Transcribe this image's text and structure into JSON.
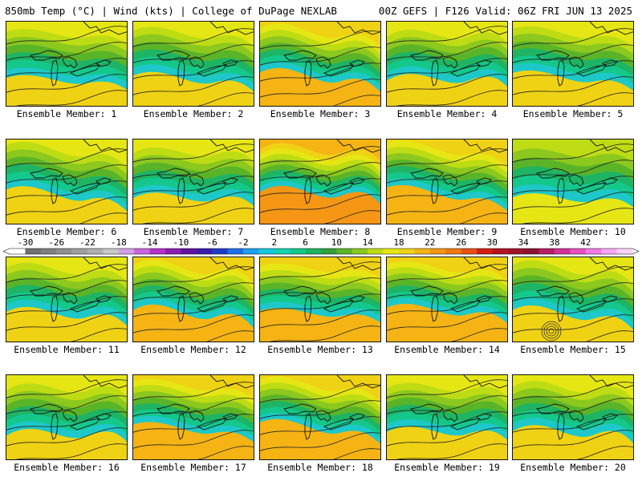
{
  "header": {
    "left": "850mb Temp (°C) | Wind (kts) | College of DuPage NEXLAB",
    "right": "00Z GEFS | F126 Valid: 06Z FRI JUN 13 2025"
  },
  "panel_label_prefix": "Ensemble Member: ",
  "members": [
    {
      "number": "1",
      "warmth": 0.45,
      "max_temp_c": 20
    },
    {
      "number": "2",
      "warmth": 0.5,
      "max_temp_c": 20
    },
    {
      "number": "3",
      "warmth": 0.62,
      "max_temp_c": 21
    },
    {
      "number": "4",
      "warmth": 0.55,
      "max_temp_c": 20
    },
    {
      "number": "5",
      "warmth": 0.55,
      "max_temp_c": 20
    },
    {
      "number": "6",
      "warmth": 0.55,
      "max_temp_c": 21
    },
    {
      "number": "7",
      "warmth": 0.5,
      "max_temp_c": 20
    },
    {
      "number": "8",
      "warmth": 0.78,
      "max_temp_c": 24
    },
    {
      "number": "9",
      "warmth": 0.62,
      "max_temp_c": 21
    },
    {
      "number": "10",
      "warmth": 0.4,
      "max_temp_c": 19
    },
    {
      "number": "11",
      "warmth": 0.55,
      "max_temp_c": 21
    },
    {
      "number": "12",
      "warmth": 0.6,
      "max_temp_c": 20
    },
    {
      "number": "13",
      "warmth": 0.62,
      "max_temp_c": 20
    },
    {
      "number": "14",
      "warmth": 0.72,
      "max_temp_c": 22
    },
    {
      "number": "15",
      "warmth": 0.5,
      "max_temp_c": 21
    },
    {
      "number": "16",
      "warmth": 0.48,
      "max_temp_c": 20
    },
    {
      "number": "17",
      "warmth": 0.68,
      "max_temp_c": 22
    },
    {
      "number": "18",
      "warmth": 0.72,
      "max_temp_c": 22
    },
    {
      "number": "19",
      "warmth": 0.58,
      "max_temp_c": 20
    },
    {
      "number": "20",
      "warmth": 0.55,
      "max_temp_c": 20
    }
  ],
  "colorbar": {
    "tick_labels": [
      "-30",
      "-26",
      "-22",
      "-18",
      "-14",
      "-10",
      "-6",
      "-2",
      "2",
      "6",
      "10",
      "14",
      "18",
      "22",
      "26",
      "30",
      "34",
      "38",
      "42"
    ],
    "colors": [
      "#ffffff",
      "#707070",
      "#7f7f7f",
      "#8f8f8f",
      "#a0a0a0",
      "#b0b0b0",
      "#c8c8c8",
      "#d2a0e6",
      "#c864dc",
      "#b432c8",
      "#8c1eb4",
      "#6414a0",
      "#3c1eaa",
      "#1e3cc8",
      "#1e6ee6",
      "#1ea0f0",
      "#14c8dc",
      "#14d2b4",
      "#14c88c",
      "#1eb464",
      "#32a03c",
      "#5ab428",
      "#8cc81e",
      "#bedc14",
      "#e6e614",
      "#f0d214",
      "#f5b414",
      "#f59614",
      "#f07814",
      "#e65014",
      "#d21e14",
      "#b4141e",
      "#a01428",
      "#8c1432",
      "#b41e64",
      "#d23296",
      "#e650be",
      "#f078e6",
      "#f8a8f8",
      "#ffd2ff"
    ]
  }
}
